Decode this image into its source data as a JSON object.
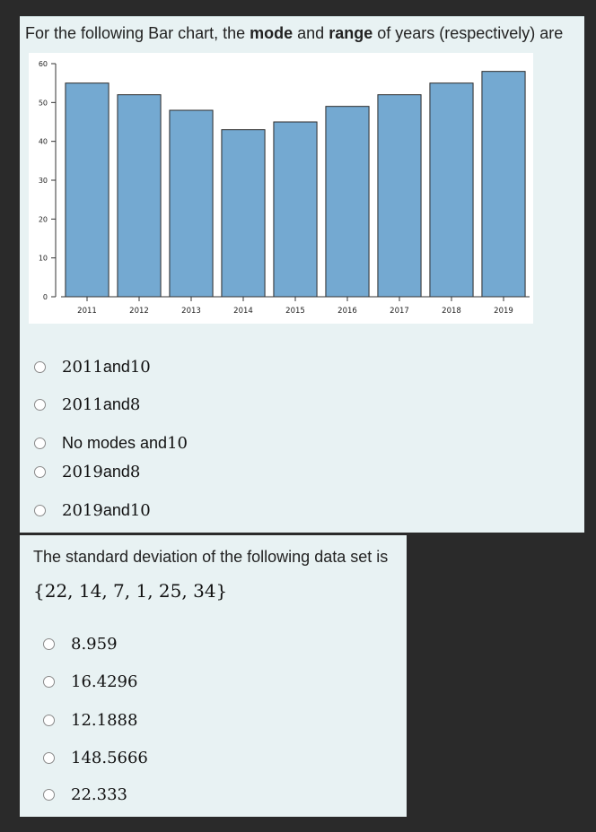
{
  "question1": {
    "title_pre": "For the following Bar chart, the ",
    "title_bold1": "mode",
    "title_mid": " and ",
    "title_bold2": "range",
    "title_post": " of years (respectively) are",
    "options": [
      {
        "num": "2011",
        "text": " and ",
        "num2": "10"
      },
      {
        "num": "2011",
        "text": " and ",
        "num2": "8"
      },
      {
        "num": "",
        "text": "No modes and ",
        "num2": "10"
      },
      {
        "num": "2019",
        "text": " and ",
        "num2": "8"
      },
      {
        "num": "2019",
        "text": " and ",
        "num2": "10"
      }
    ]
  },
  "chart_data": {
    "type": "bar",
    "categories": [
      "2011",
      "2012",
      "2013",
      "2014",
      "2015",
      "2016",
      "2017",
      "2018",
      "2019"
    ],
    "values": [
      55,
      52,
      48,
      43,
      45,
      49,
      52,
      55,
      58
    ],
    "title": "",
    "xlabel": "",
    "ylabel": "",
    "ylim": [
      0,
      60
    ],
    "yticks": [
      0,
      10,
      20,
      30,
      40,
      50,
      60
    ],
    "bar_color": "#74a9d1",
    "bar_edge": "#2b2b2b",
    "grid": false
  },
  "question2": {
    "title": "The standard deviation of the following data set is",
    "data_set": "{22, 14, 7, 1, 25, 34}",
    "options": [
      "8.959",
      "16.4296",
      "12.1888",
      "148.5666",
      "22.333"
    ]
  },
  "colors": {
    "page_bg": "#2a2a2a",
    "card_bg": "#e8f2f3"
  }
}
